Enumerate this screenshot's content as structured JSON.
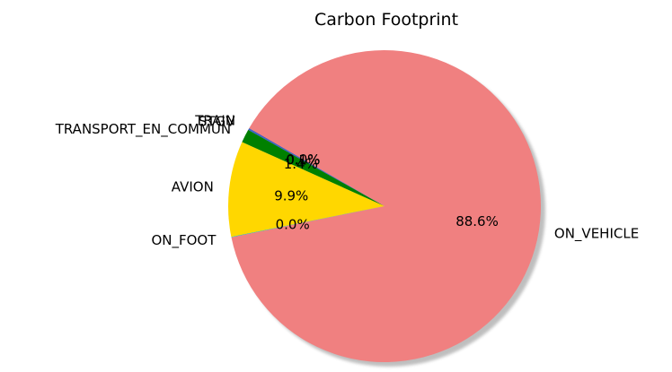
{
  "chart_data": {
    "type": "pie",
    "title": "Carbon Footprint",
    "categories": [
      "TRAIN",
      "STGV",
      "TRANSPORT_EN_COMMUN",
      "AVION",
      "ON_FOOT",
      "ON_VEHICLE"
    ],
    "percent_labels": [
      "0.0%",
      "0.1%",
      "1.4%",
      "9.9%",
      "0.0%",
      "88.6%"
    ],
    "values": [
      0.05,
      0.15,
      1.4,
      9.9,
      0.05,
      88.6
    ],
    "colors": [
      "#1f3f9f",
      "#3a5fcd",
      "#008000",
      "#ffd700",
      "#00ced1",
      "#f08080"
    ],
    "start_angle_deg": 150,
    "direction": "counterclockwise",
    "shadow": true,
    "legend": "none"
  }
}
